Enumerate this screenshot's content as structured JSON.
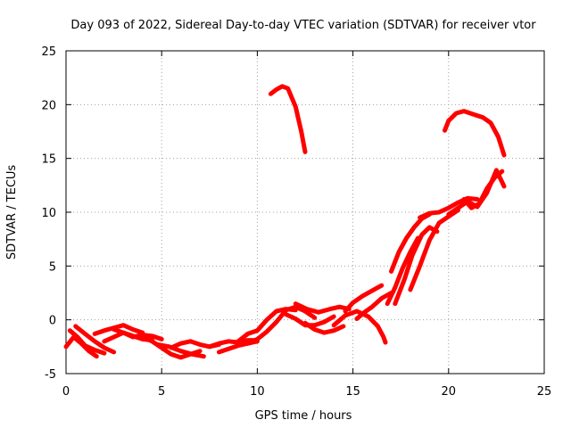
{
  "chart_data": {
    "type": "line",
    "title": "Day 093 of 2022, Sidereal Day-to-day VTEC variation (SDTVAR) for receiver vtor",
    "xlabel": "GPS time / hours",
    "ylabel": "SDTVAR / TECUs",
    "xlim": [
      0,
      25
    ],
    "ylim": [
      -5,
      25
    ],
    "xticks": [
      "0",
      "5",
      "10",
      "15",
      "20",
      "25"
    ],
    "yticks": [
      "-5",
      "0",
      "5",
      "10",
      "15",
      "20",
      "25"
    ],
    "xtick_values": [
      0,
      5,
      10,
      15,
      20,
      25
    ],
    "ytick_values": [
      -5,
      0,
      5,
      10,
      15,
      20,
      25
    ],
    "grid": true,
    "color": "#ff0000",
    "series": [
      {
        "name": "s1",
        "x": [
          0.0,
          0.4,
          0.8,
          1.2,
          1.6
        ],
        "y": [
          -2.5,
          -1.6,
          -2.2,
          -2.9,
          -3.4
        ]
      },
      {
        "name": "s2",
        "x": [
          0.2,
          0.6,
          1.0,
          1.5,
          2.0
        ],
        "y": [
          -1.0,
          -1.6,
          -2.4,
          -2.8,
          -3.1
        ]
      },
      {
        "name": "s3",
        "x": [
          0.5,
          1.0,
          1.5,
          2.0,
          2.5
        ],
        "y": [
          -0.6,
          -1.3,
          -2.0,
          -2.6,
          -3.0
        ]
      },
      {
        "name": "s4",
        "x": [
          1.5,
          2.0,
          2.6,
          3.0,
          3.5,
          4.0
        ],
        "y": [
          -1.3,
          -1.0,
          -0.7,
          -0.5,
          -0.9,
          -1.2
        ]
      },
      {
        "name": "s5",
        "x": [
          2.0,
          2.5,
          3.0,
          3.5,
          4.0,
          4.5
        ],
        "y": [
          -2.0,
          -1.6,
          -1.2,
          -1.5,
          -1.8,
          -1.9
        ]
      },
      {
        "name": "s6",
        "x": [
          2.5,
          3.0,
          3.5,
          4.0,
          4.5,
          5.0
        ],
        "y": [
          -0.9,
          -1.2,
          -1.6,
          -1.4,
          -1.5,
          -1.8
        ]
      },
      {
        "name": "s7",
        "x": [
          4.0,
          4.5,
          5.0,
          5.5,
          6.0,
          6.5,
          7.0
        ],
        "y": [
          -1.6,
          -2.0,
          -2.6,
          -3.2,
          -3.5,
          -3.2,
          -2.9
        ]
      },
      {
        "name": "s8",
        "x": [
          4.8,
          5.4,
          6.0,
          6.6,
          7.2
        ],
        "y": [
          -2.3,
          -2.5,
          -2.9,
          -3.2,
          -3.4
        ]
      },
      {
        "name": "s9",
        "x": [
          5.5,
          6.0,
          6.5,
          7.0,
          7.5,
          8.0
        ],
        "y": [
          -2.6,
          -2.2,
          -2.0,
          -2.3,
          -2.5,
          -2.3
        ]
      },
      {
        "name": "s10",
        "x": [
          7.5,
          8.0,
          8.5,
          9.0,
          9.5,
          10.0
        ],
        "y": [
          -2.5,
          -2.2,
          -2.0,
          -2.1,
          -1.9,
          -1.9
        ]
      },
      {
        "name": "s11",
        "x": [
          8.0,
          8.5,
          9.0,
          9.5,
          10.0
        ],
        "y": [
          -3.0,
          -2.7,
          -2.4,
          -2.2,
          -2.0
        ]
      },
      {
        "name": "s12",
        "x": [
          9.0,
          9.5,
          10.0,
          10.5,
          11.0,
          11.5,
          12.0
        ],
        "y": [
          -2.0,
          -1.3,
          -1.0,
          0.0,
          0.8,
          1.0,
          0.9
        ]
      },
      {
        "name": "s13",
        "x": [
          9.5,
          10.0,
          10.5,
          11.0,
          11.5,
          12.0,
          12.5,
          13.0
        ],
        "y": [
          -2.2,
          -1.8,
          -1.1,
          -0.2,
          0.9,
          1.2,
          0.8,
          0.2
        ]
      },
      {
        "name": "s14",
        "x": [
          11.5,
          12.0,
          12.5,
          13.0,
          13.5,
          14.0
        ],
        "y": [
          0.5,
          0.1,
          -0.5,
          -0.5,
          -0.2,
          0.3
        ]
      },
      {
        "name": "s15",
        "x": [
          12.5,
          13.0,
          13.5,
          14.0,
          14.5
        ],
        "y": [
          -0.3,
          -0.9,
          -1.2,
          -1.0,
          -0.6
        ]
      },
      {
        "name": "s16",
        "x": [
          12.0,
          12.6,
          13.2,
          13.8,
          14.3,
          14.8
        ],
        "y": [
          1.5,
          1.0,
          0.7,
          1.0,
          1.2,
          1.0
        ]
      },
      {
        "name": "s17",
        "x": [
          10.7,
          11.0,
          11.3,
          11.6,
          12.0,
          12.3,
          12.5
        ],
        "y": [
          21.0,
          21.4,
          21.7,
          21.5,
          19.8,
          17.5,
          15.6
        ]
      },
      {
        "name": "s18",
        "x": [
          14.0,
          14.6,
          15.2,
          15.8,
          16.3,
          16.6,
          16.7
        ],
        "y": [
          -0.5,
          0.4,
          0.8,
          0.3,
          -0.6,
          -1.6,
          -2.1
        ]
      },
      {
        "name": "s19",
        "x": [
          14.6,
          15.0,
          15.5,
          16.0,
          16.5
        ],
        "y": [
          0.8,
          1.6,
          2.2,
          2.7,
          3.2
        ]
      },
      {
        "name": "s20",
        "x": [
          15.2,
          15.6,
          16.0,
          16.5,
          17.0
        ],
        "y": [
          0.1,
          0.7,
          1.2,
          2.0,
          2.5
        ]
      },
      {
        "name": "s21",
        "x": [
          16.8,
          17.2,
          17.6,
          18.0,
          18.4
        ],
        "y": [
          1.5,
          3.0,
          4.8,
          6.3,
          7.6
        ]
      },
      {
        "name": "s22",
        "x": [
          17.0,
          17.4,
          17.8,
          18.2,
          18.6,
          19.0
        ],
        "y": [
          4.5,
          6.3,
          7.6,
          8.6,
          9.4,
          9.8
        ]
      },
      {
        "name": "s23",
        "x": [
          17.2,
          17.7,
          18.1,
          18.6,
          19.0,
          19.4
        ],
        "y": [
          1.5,
          3.8,
          6.0,
          7.9,
          8.6,
          8.2
        ]
      },
      {
        "name": "s24",
        "x": [
          18.0,
          18.5,
          19.0,
          19.5,
          20.0,
          20.5
        ],
        "y": [
          2.8,
          5.0,
          7.4,
          9.0,
          9.6,
          10.2
        ]
      },
      {
        "name": "s25",
        "x": [
          18.5,
          19.0,
          19.5,
          20.0,
          20.5,
          21.0,
          21.5
        ],
        "y": [
          9.5,
          9.9,
          10.0,
          10.4,
          10.9,
          11.3,
          11.2
        ]
      },
      {
        "name": "s26",
        "x": [
          20.0,
          20.5,
          21.0,
          21.5,
          22.0,
          22.5,
          22.9
        ],
        "y": [
          9.8,
          10.4,
          11.0,
          10.5,
          11.8,
          13.9,
          12.4
        ]
      },
      {
        "name": "s27",
        "x": [
          20.8,
          21.2,
          21.6,
          22.0,
          22.4,
          22.8
        ],
        "y": [
          11.2,
          10.4,
          10.8,
          12.2,
          13.2,
          13.8
        ]
      },
      {
        "name": "s28",
        "x": [
          19.8,
          20.0,
          20.4,
          20.8,
          21.3,
          21.8,
          22.2,
          22.6,
          22.9
        ],
        "y": [
          17.6,
          18.5,
          19.2,
          19.4,
          19.1,
          18.8,
          18.3,
          17.0,
          15.3
        ]
      }
    ]
  }
}
